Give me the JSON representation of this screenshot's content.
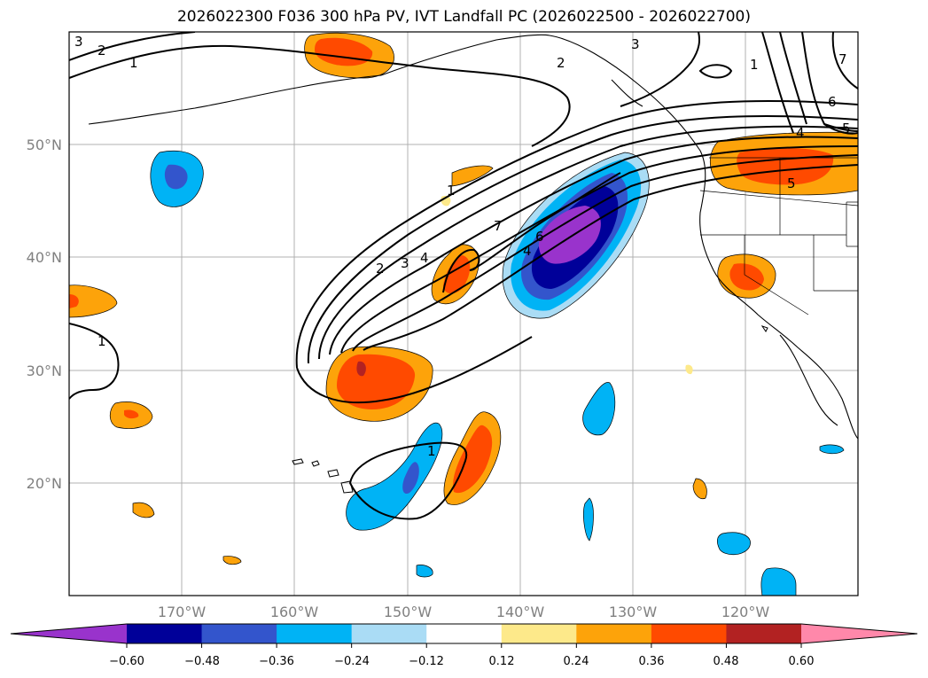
{
  "title": "2026022300 F036 300 hPa PV, IVT Landfall PC (2026022500 - 2026022700)",
  "map": {
    "lat_labels": [
      "50°N",
      "40°N",
      "30°N",
      "20°N"
    ],
    "lon_labels": [
      "170°W",
      "160°W",
      "150°W",
      "140°W",
      "130°W",
      "120°W"
    ],
    "contour_labels": [
      "3",
      "2",
      "1",
      "1",
      "2",
      "3",
      "4",
      "5",
      "6",
      "7",
      "2",
      "3",
      "4",
      "7",
      "6",
      "1",
      "1",
      "1",
      "4",
      "5"
    ]
  },
  "colorbar": {
    "tick_labels": [
      "−0.60",
      "−0.48",
      "−0.36",
      "−0.24",
      "−0.12",
      "0.12",
      "0.24",
      "0.36",
      "0.48",
      "0.60"
    ],
    "colors": [
      "#9933cc",
      "#000099",
      "#3355cc",
      "#00b3f5",
      "#aadcf5",
      "#ffffff",
      "#fde98a",
      "#fda30a",
      "#ff4a00",
      "#b22222",
      "#ff88aa"
    ]
  }
}
